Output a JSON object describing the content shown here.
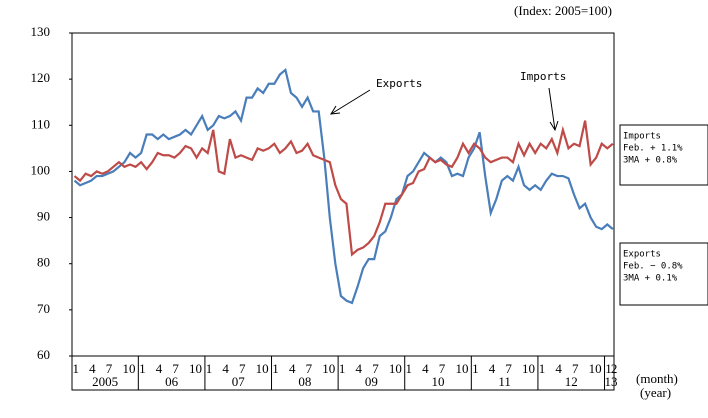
{
  "chart_data": {
    "type": "line",
    "subtitle": "(Index: 2005=100)",
    "x_label": "(month)",
    "x_label2": "(year)",
    "categories": [
      "1",
      null,
      null,
      "4",
      null,
      null,
      "7",
      null,
      null,
      "10",
      null,
      null,
      "1",
      null,
      null,
      "4",
      null,
      null,
      "7",
      null,
      null,
      "10",
      null,
      null,
      "1",
      null,
      null,
      "4",
      null,
      null,
      "7",
      null,
      null,
      "10",
      null,
      null,
      "1",
      null,
      null,
      "4",
      null,
      null,
      "7",
      null,
      null,
      "10",
      null,
      null,
      "1",
      null,
      null,
      "4",
      null,
      null,
      "7",
      null,
      null,
      "10",
      null,
      null,
      "1",
      null,
      null,
      "4",
      null,
      null,
      "7",
      null,
      null,
      "10",
      null,
      null,
      "1",
      null,
      null,
      "4",
      null,
      null,
      "7",
      null,
      null,
      "10",
      null,
      null,
      "1",
      null,
      null,
      "4",
      null,
      null,
      "7",
      null,
      null,
      "10",
      null,
      null,
      "1",
      "2"
    ],
    "years": [
      "2005",
      "06",
      "07",
      "08",
      "09",
      "10",
      "11",
      "12",
      "13"
    ],
    "series": [
      {
        "name": "Exports",
        "color": "#4a7ebb",
        "values": [
          98,
          97,
          97.5,
          98,
          99,
          99,
          99.5,
          100,
          101,
          102,
          104,
          103,
          104,
          108,
          108,
          107,
          108,
          107,
          107.5,
          108,
          109,
          108,
          110,
          112,
          109,
          110,
          112,
          111.5,
          112,
          113,
          111,
          116,
          116,
          118,
          117,
          119,
          119,
          121,
          122,
          117,
          116,
          114,
          116,
          113,
          113,
          103,
          90,
          80,
          73,
          72,
          71.5,
          75,
          79,
          81,
          81,
          86,
          87,
          90,
          94,
          95,
          99,
          100,
          102,
          104,
          103,
          102,
          103,
          102,
          99,
          99.5,
          99,
          103,
          105,
          108.5,
          99,
          91,
          94,
          98,
          99,
          98,
          101,
          97,
          96,
          97,
          96,
          98,
          99.5,
          99,
          99,
          98.5,
          95,
          92,
          93,
          90,
          88,
          87.5,
          88.5,
          87.5
        ]
      },
      {
        "name": "Imports",
        "color": "#be4b48",
        "values": [
          99,
          98,
          99.5,
          99,
          100,
          99.5,
          100,
          101,
          102,
          101,
          101.5,
          101,
          102,
          100.5,
          102,
          104,
          103.5,
          103.5,
          103,
          104,
          105.5,
          105,
          103,
          105,
          104,
          109,
          100,
          99.5,
          107,
          103,
          103.5,
          103,
          102.5,
          105,
          104.5,
          105,
          106,
          104,
          105,
          106.5,
          104,
          104.5,
          106,
          103.5,
          103,
          102.5,
          102,
          97,
          94,
          93,
          82,
          83,
          83.5,
          84.5,
          86,
          89,
          93,
          93,
          93,
          95,
          97,
          97.5,
          100,
          100.5,
          103,
          102,
          102.5,
          101.5,
          101,
          103,
          106,
          104,
          106,
          105,
          103,
          102,
          102.5,
          103,
          103,
          102,
          106,
          103.5,
          106,
          104,
          106,
          105,
          107,
          104,
          109,
          105,
          106,
          105.5,
          111,
          101.5,
          103,
          106,
          105,
          106
        ]
      }
    ],
    "ylim": [
      60,
      130
    ],
    "yticks": [
      60,
      70,
      80,
      90,
      100,
      110,
      120,
      130
    ],
    "annotations": [
      "Exports",
      "Imports"
    ],
    "boxes": [
      [
        "Imports",
        "Feb.  + 1.1%",
        "3MA  + 0.8%"
      ],
      [
        "Exports",
        "Feb.  − 0.8%",
        "3MA  + 0.1%"
      ]
    ]
  }
}
